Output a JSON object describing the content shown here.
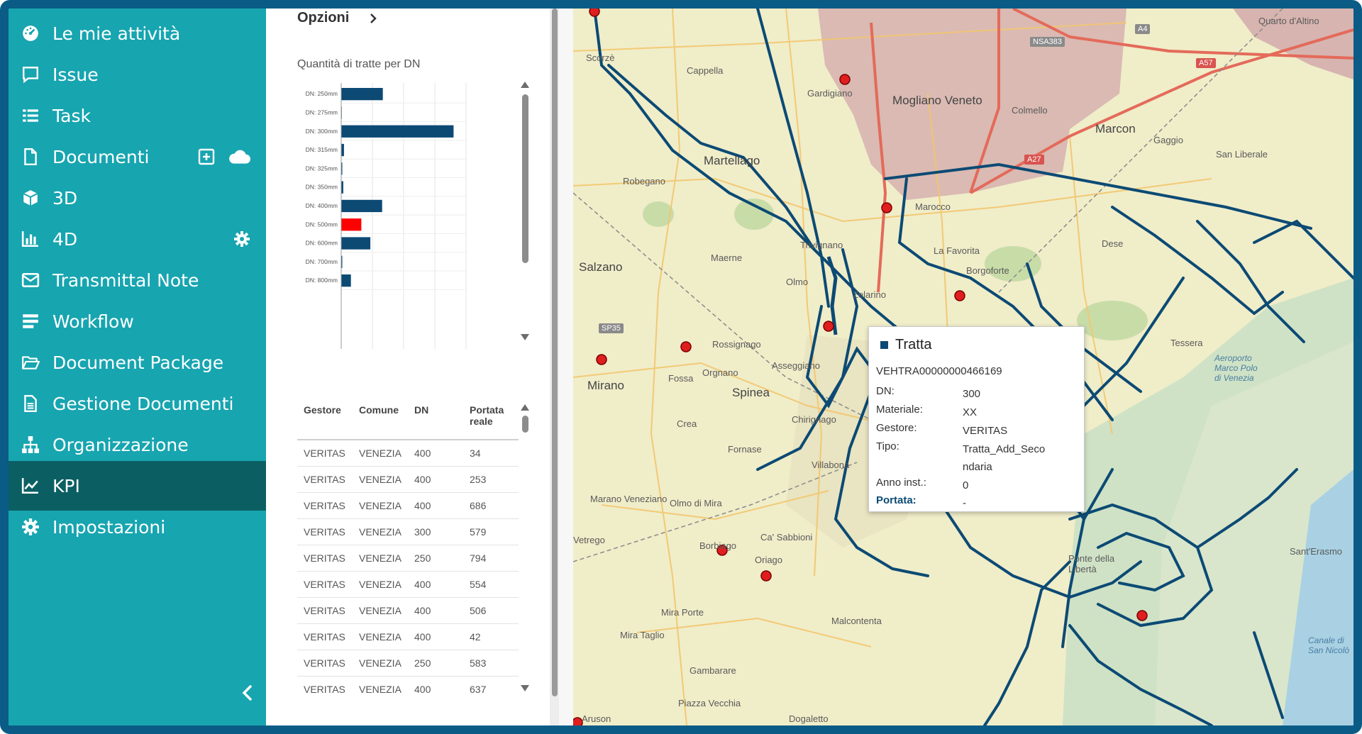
{
  "sidebar": {
    "items": [
      {
        "label": "Le mie attività",
        "icon": "gauge-icon"
      },
      {
        "label": "Issue",
        "icon": "chat-icon"
      },
      {
        "label": "Task",
        "icon": "list-icon"
      },
      {
        "label": "Documenti",
        "icon": "document-icon"
      },
      {
        "label": "3D",
        "icon": "cube-icon"
      },
      {
        "label": "4D",
        "icon": "bar-chart-icon"
      },
      {
        "label": "Transmittal Note",
        "icon": "envelope-icon"
      },
      {
        "label": "Workflow",
        "icon": "stack-icon"
      },
      {
        "label": "Document Package",
        "icon": "folder-icon"
      },
      {
        "label": "Gestione Documenti",
        "icon": "file-text-icon"
      },
      {
        "label": "Organizzazione",
        "icon": "sitemap-icon"
      },
      {
        "label": "KPI",
        "icon": "line-chart-icon"
      },
      {
        "label": "Impostazioni",
        "icon": "gear-icon"
      }
    ],
    "active": "KPI"
  },
  "panel": {
    "options_label": "Opzioni",
    "chart_title": "Quantità di tratte per DN"
  },
  "chart_data": {
    "type": "bar",
    "orientation": "horizontal",
    "title": "Quantità di tratte per DN",
    "categories": [
      "DN: 250mm",
      "DN: 275mm",
      "DN: 300mm",
      "DN: 315mm",
      "DN: 325mm",
      "DN: 350mm",
      "DN: 400mm",
      "DN: 500mm",
      "DN: 600mm",
      "DN: 700mm",
      "DN: 800mm"
    ],
    "values": [
      60,
      0,
      162,
      4,
      1,
      3,
      59,
      29,
      42,
      1,
      14
    ],
    "highlight": "DN: 500mm",
    "colors": {
      "default": "#0c4a74",
      "highlight": "#ff0000"
    },
    "xlim": [
      0,
      180
    ]
  },
  "table": {
    "headers": [
      "Gestore",
      "Comune",
      "DN",
      "Portata reale"
    ],
    "rows": [
      [
        "VERITAS",
        "VENEZIA",
        "400",
        "34"
      ],
      [
        "VERITAS",
        "VENEZIA",
        "400",
        "253"
      ],
      [
        "VERITAS",
        "VENEZIA",
        "400",
        "686"
      ],
      [
        "VERITAS",
        "VENEZIA",
        "300",
        "579"
      ],
      [
        "VERITAS",
        "VENEZIA",
        "250",
        "794"
      ],
      [
        "VERITAS",
        "VENEZIA",
        "400",
        "554"
      ],
      [
        "VERITAS",
        "VENEZIA",
        "400",
        "506"
      ],
      [
        "VERITAS",
        "VENEZIA",
        "400",
        "42"
      ],
      [
        "VERITAS",
        "VENEZIA",
        "250",
        "583"
      ],
      [
        "VERITAS",
        "VENEZIA",
        "400",
        "637"
      ]
    ]
  },
  "map": {
    "labels": [
      "Scorzè",
      "Cappella",
      "Gardigiano",
      "Mogliano Veneto",
      "Colmello",
      "Marcon",
      "Gaggio",
      "San Liberale",
      "Quarto d'Altino",
      "Martellago",
      "Robegano",
      "Salzano",
      "Maerne",
      "Trivignano",
      "Olmo",
      "Zelarino",
      "Marocco",
      "La Favorita",
      "Borgoforte",
      "Dese",
      "Mirano",
      "Rossignago",
      "Orgnano",
      "Spinea",
      "Asseggiano",
      "Chirignago",
      "Fossa",
      "Crea",
      "Fornase",
      "Villabona",
      "Tessera",
      "Marano Veneziano",
      "Olmo di Mira",
      "Ca' Sabbioni",
      "Borbiago",
      "Oriago",
      "Mira Porte",
      "Mira Taglio",
      "Malcontenta",
      "Gambarare",
      "Piazza Vecchia",
      "Dogaletto",
      "Sant'Erasmo",
      "Ponte della Libertà",
      "Aeroporto Marco Polo di Venezia",
      "Canale di San Nicolò",
      "Aruson",
      "Vetrego"
    ],
    "roads": [
      "NSA383",
      "A4",
      "A57",
      "A27",
      "SP35"
    ]
  },
  "popup": {
    "title": "Tratta",
    "id": "VEHTRA00000000466169",
    "fields": [
      {
        "key": "DN:",
        "value": "300"
      },
      {
        "key": "Materiale:",
        "value": "XX"
      },
      {
        "key": "Gestore:",
        "value": "VERITAS"
      },
      {
        "key": "Tipo:",
        "value": "Tratta_Add_Secondaria"
      },
      {
        "key": "Anno inst.:",
        "value": "0"
      },
      {
        "key": "Portata:",
        "value": "-"
      }
    ]
  }
}
